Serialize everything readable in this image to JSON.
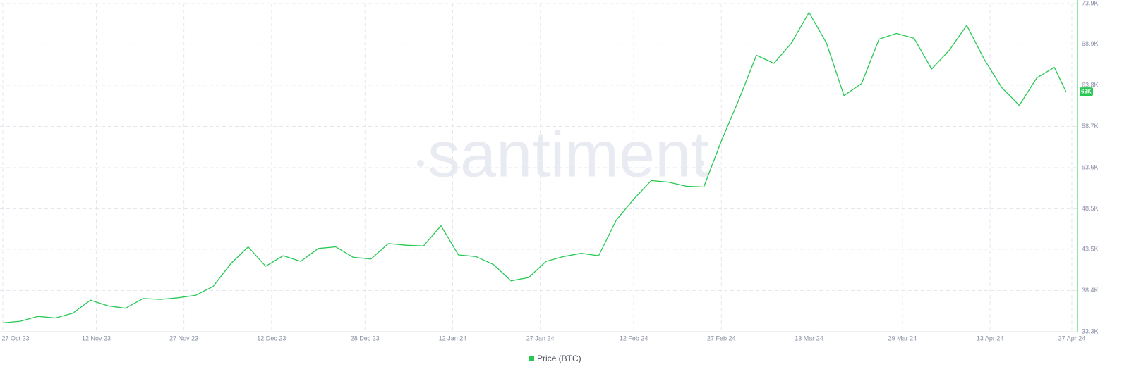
{
  "chart_data": {
    "type": "line",
    "watermark": "santiment",
    "x": [
      "2023-10-27",
      "2023-10-30",
      "2023-11-02",
      "2023-11-05",
      "2023-11-08",
      "2023-11-11",
      "2023-11-14",
      "2023-11-17",
      "2023-11-20",
      "2023-11-23",
      "2023-11-26",
      "2023-11-29",
      "2023-12-02",
      "2023-12-05",
      "2023-12-08",
      "2023-12-11",
      "2023-12-14",
      "2023-12-17",
      "2023-12-20",
      "2023-12-23",
      "2023-12-26",
      "2023-12-29",
      "2024-01-01",
      "2024-01-04",
      "2024-01-07",
      "2024-01-10",
      "2024-01-13",
      "2024-01-16",
      "2024-01-19",
      "2024-01-22",
      "2024-01-25",
      "2024-01-28",
      "2024-01-31",
      "2024-02-03",
      "2024-02-06",
      "2024-02-09",
      "2024-02-12",
      "2024-02-15",
      "2024-02-18",
      "2024-02-21",
      "2024-02-24",
      "2024-02-27",
      "2024-03-01",
      "2024-03-04",
      "2024-03-07",
      "2024-03-10",
      "2024-03-13",
      "2024-03-16",
      "2024-03-19",
      "2024-03-22",
      "2024-03-25",
      "2024-03-28",
      "2024-03-31",
      "2024-04-03",
      "2024-04-06",
      "2024-04-09",
      "2024-04-12",
      "2024-04-15",
      "2024-04-18",
      "2024-04-21",
      "2024-04-24",
      "2024-04-26"
    ],
    "series": [
      {
        "name": "Price (BTC)",
        "color": "#26c953",
        "axis": "y2",
        "values": [
          34400,
          34600,
          35200,
          35000,
          35600,
          37200,
          36500,
          36200,
          37400,
          37300,
          37500,
          37800,
          38900,
          41700,
          43800,
          41400,
          42700,
          42000,
          43600,
          43800,
          42500,
          42300,
          44200,
          44000,
          43900,
          46400,
          42800,
          42600,
          41600,
          39600,
          40000,
          42000,
          42600,
          43000,
          42700,
          47100,
          49700,
          52000,
          51800,
          51300,
          51200,
          56900,
          62000,
          67500,
          66500,
          69000,
          72800,
          69000,
          62500,
          64000,
          69500,
          70200,
          69600,
          65800,
          68100,
          71200,
          67000,
          63500,
          61300,
          64700,
          66000,
          63000
        ]
      }
    ],
    "last_value_label": "63K",
    "xlim": [
      "2023-10-27",
      "2024-04-27"
    ],
    "xticks": [
      {
        "value": "2023-10-27",
        "label": "27 Oct 23"
      },
      {
        "value": "2023-11-12",
        "label": "12 Nov 23"
      },
      {
        "value": "2023-11-27",
        "label": "27 Nov 23"
      },
      {
        "value": "2023-12-12",
        "label": "12 Dec 23"
      },
      {
        "value": "2023-12-28",
        "label": "28 Dec 23"
      },
      {
        "value": "2024-01-12",
        "label": "12 Jan 24"
      },
      {
        "value": "2024-01-27",
        "label": "27 Jan 24"
      },
      {
        "value": "2024-02-12",
        "label": "12 Feb 24"
      },
      {
        "value": "2024-02-27",
        "label": "27 Feb 24"
      },
      {
        "value": "2024-03-13",
        "label": "13 Mar 24"
      },
      {
        "value": "2024-03-29",
        "label": "29 Mar 24"
      },
      {
        "value": "2024-04-13",
        "label": "13 Apr 24"
      },
      {
        "value": "2024-04-27",
        "label": "27 Apr 24"
      }
    ],
    "y2lim": [
      33300,
      73900
    ],
    "y2ticks": [
      {
        "value": 33300,
        "label": "33.3K"
      },
      {
        "value": 38400,
        "label": "38.4K"
      },
      {
        "value": 43500,
        "label": "43.5K"
      },
      {
        "value": 48500,
        "label": "48.5K"
      },
      {
        "value": 53600,
        "label": "53.6K"
      },
      {
        "value": 58700,
        "label": "58.7K"
      },
      {
        "value": 63800,
        "label": "63.8K"
      },
      {
        "value": 68900,
        "label": "68.9K"
      },
      {
        "value": 73900,
        "label": "73.9K"
      }
    ],
    "grid": true,
    "legend": "bottom"
  }
}
